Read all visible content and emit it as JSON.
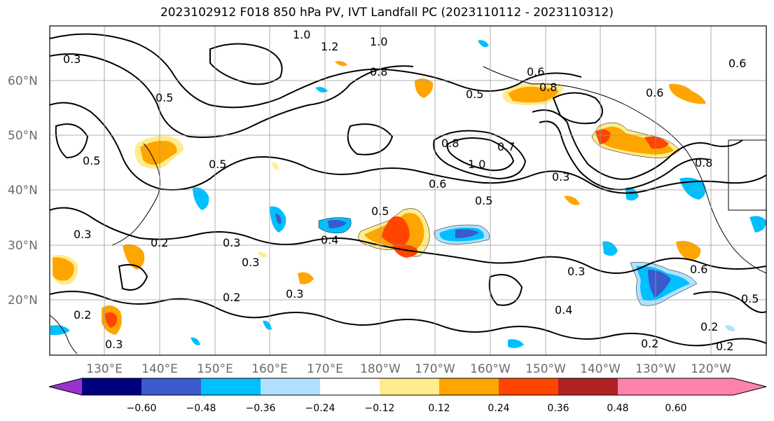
{
  "title": "2023102912 F018 850 hPa PV, IVT Landfall PC (2023110112 - 2023110312)",
  "map": {
    "lat_labels": [
      "60°N",
      "50°N",
      "40°N",
      "30°N",
      "20°N"
    ],
    "lon_labels": [
      "130°E",
      "140°E",
      "150°E",
      "160°E",
      "170°E",
      "180°W",
      "170°W",
      "160°W",
      "150°W",
      "140°W",
      "130°W",
      "120°W"
    ],
    "contour_labels": [
      "0.3",
      "1.0",
      "1.2",
      "1.0",
      "0.8",
      "0.5",
      "0.5",
      "0.5",
      "0.8",
      "0.6",
      "0.6",
      "0.5",
      "0.8",
      "1.0",
      "0.7",
      "0.6",
      "0.5",
      "0.3",
      "0.8",
      "0.3",
      "0.2",
      "0.3",
      "0.3",
      "0.4",
      "0.5",
      "0.3",
      "0.6",
      "0.2",
      "0.3",
      "0.4",
      "0.2",
      "0.2",
      "0.2",
      "0.2",
      "0.5",
      "0.3",
      "0.6"
    ]
  },
  "colorbar": {
    "colors": [
      "#9932cc",
      "#000080",
      "#3a5acd",
      "#00bfff",
      "#b0e2ff",
      "#ffffff",
      "#ffec8b",
      "#ffa500",
      "#ff4500",
      "#b22222",
      "#ff82ab"
    ],
    "ticks": [
      "−0.60",
      "−0.48",
      "−0.36",
      "−0.24",
      "−0.12",
      "0.12",
      "0.24",
      "0.36",
      "0.48",
      "0.60"
    ]
  },
  "colors": {
    "positive_strong": "#ff4500",
    "positive": "#ffa500",
    "positive_weak": "#ffec8b",
    "negative_weak": "#b0e2ff",
    "negative": "#00bfff",
    "negative_strong": "#3a5acd"
  }
}
